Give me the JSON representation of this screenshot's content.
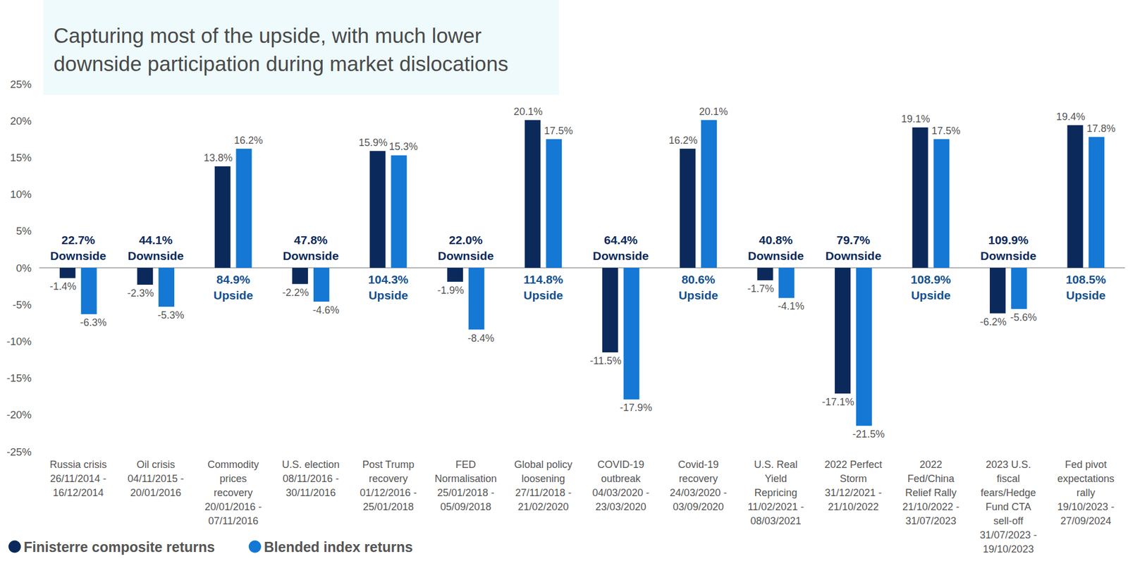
{
  "chart_data": {
    "type": "bar",
    "title": "Capturing most of the upside, with much lower\ndownside participation during market dislocations",
    "categories": [
      "Russia crisis\n26/11/2014 -\n16/12/2014",
      "Oil crisis\n04/11/2015 -\n20/01/2016",
      "Commodity\nprices\nrecovery\n20/01/2016 -\n07/11/2016",
      "U.S. election\n08/11/2016 -\n30/11/2016",
      "Post Trump\nrecovery\n01/12/2016 -\n25/01/2018",
      "FED\nNormalisation\n25/01/2018 -\n05/09/2018",
      "Global policy\nloosening\n27/11/2018 -\n21/02/2020",
      "COVID-19\noutbreak\n04/03/2020 -\n23/03/2020",
      "Covid-19\nrecovery\n24/03/2020 -\n03/09/2020",
      "U.S. Real\nYield\nRepricing\n11/02/2021 -\n08/03/2021",
      "2022 Perfect\nStorm\n31/12/2021 -\n21/10/2022",
      "2022\nFed/China\nRelief Rally\n21/10/2022 -\n31/07/2023",
      "2023 U.S.\nfiscal\nfears/Hedge\nFund CTA\nsell-off\n31/07/2023 -\n19/10/2023",
      "Fed pivot\nexpectations\nrally\n19/10/2023 -\n27/09/2024"
    ],
    "series": [
      {
        "name": "Finisterre composite returns",
        "color": "#0b2a5b",
        "values": [
          -1.4,
          -2.3,
          13.8,
          -2.2,
          15.9,
          -1.9,
          20.1,
          -11.5,
          16.2,
          -1.7,
          -17.1,
          19.1,
          -6.2,
          19.4
        ],
        "value_labels": [
          "-1.4%",
          "-2.3%",
          "13.8%",
          "-2.2%",
          "15.9%",
          "-1.9%",
          "20.1%",
          "-11.5%",
          "16.2%",
          "-1.7%",
          "-17.1%",
          "19.1%",
          "-6.2%",
          "19.4%"
        ]
      },
      {
        "name": "Blended index returns",
        "color": "#1478d4",
        "values": [
          -6.3,
          -5.3,
          16.2,
          -4.6,
          15.3,
          -8.4,
          17.5,
          -17.9,
          20.1,
          -4.1,
          -21.5,
          17.5,
          -5.6,
          17.8
        ],
        "value_labels": [
          "-6.3%",
          "-5.3%",
          "16.2%",
          "-4.6%",
          "15.3%",
          "-8.4%",
          "17.5%",
          "-17.9%",
          "20.1%",
          "-4.1%",
          "-21.5%",
          "17.5%",
          "-5.6%",
          "17.8%"
        ]
      }
    ],
    "annotations": [
      {
        "text": "22.7%",
        "label": "Downside"
      },
      {
        "text": "44.1%",
        "label": "Downside"
      },
      {
        "text": "84.9%",
        "label": "Upside"
      },
      {
        "text": "47.8%",
        "label": "Downside"
      },
      {
        "text": "104.3%",
        "label": "Upside"
      },
      {
        "text": "22.0%",
        "label": "Downside"
      },
      {
        "text": "114.8%",
        "label": "Upside"
      },
      {
        "text": "64.4%",
        "label": "Downside"
      },
      {
        "text": "80.6%",
        "label": "Upside"
      },
      {
        "text": "40.8%",
        "label": "Downside"
      },
      {
        "text": "79.7%",
        "label": "Downside"
      },
      {
        "text": "108.9%",
        "label": "Upside"
      },
      {
        "text": "109.9%",
        "label": "Downside"
      },
      {
        "text": "108.5%",
        "label": "Upside"
      }
    ],
    "ylim": [
      -25,
      25
    ],
    "yticks": [
      {
        "value": -25,
        "label": "-25%"
      },
      {
        "value": -20,
        "label": "-20%"
      },
      {
        "value": -15,
        "label": "-15%"
      },
      {
        "value": -10,
        "label": "-10%"
      },
      {
        "value": -5,
        "label": "-5%"
      },
      {
        "value": 0,
        "label": "0%"
      },
      {
        "value": 5,
        "label": "5%"
      },
      {
        "value": 10,
        "label": "10%"
      },
      {
        "value": 15,
        "label": "15%"
      },
      {
        "value": 20,
        "label": "20%"
      },
      {
        "value": 25,
        "label": "25%"
      }
    ],
    "grid": false,
    "legend": "bottom-left",
    "data_labels": true
  }
}
